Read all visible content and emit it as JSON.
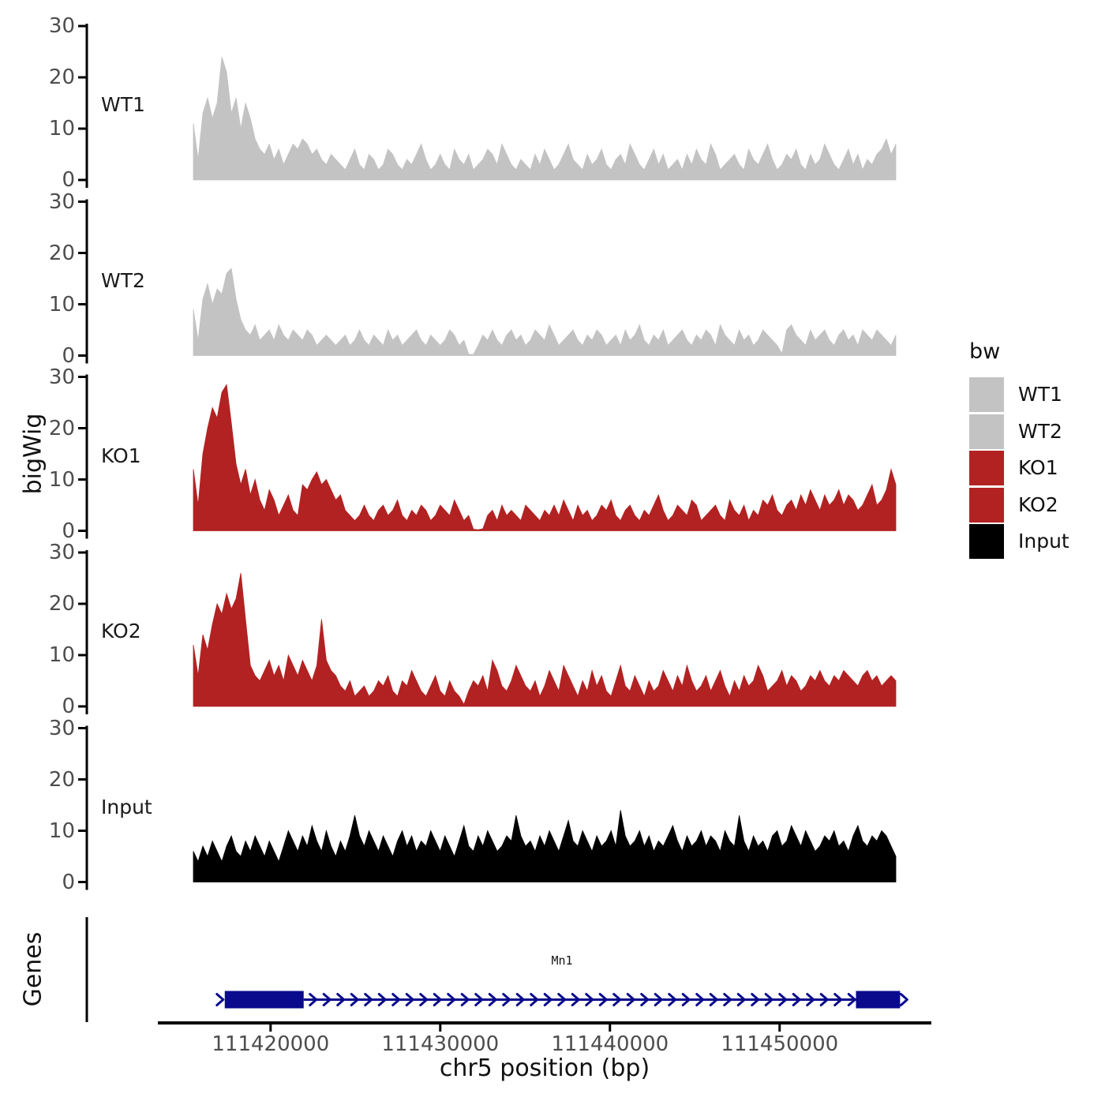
{
  "style": {
    "background": "#FFFFFF",
    "axis_color": "#000000",
    "tick_label_color": "#4D4D4D",
    "text_color": "#111111",
    "gray_fill": "#C3C3C3",
    "red_fill": "#B22222",
    "black_fill": "#000000",
    "gene_color": "#0A0A8C"
  },
  "chart_data": {
    "type": "area",
    "title": "",
    "x_axis": {
      "label": "chr5 position (bp)",
      "ticks": [
        111420000,
        111430000,
        111440000,
        111450000
      ],
      "tick_labels": [
        "111420000",
        "111430000",
        "111440000",
        "111450000"
      ],
      "range": [
        111415450,
        111456850
      ]
    },
    "y_axis": {
      "label": "bigWig",
      "ticks": [
        0,
        10,
        20,
        30
      ],
      "range": [
        0,
        30
      ]
    },
    "tracks": [
      {
        "name": "WT1",
        "color": "#C3C3C3",
        "values": [
          11,
          4,
          13,
          16,
          12,
          15,
          24,
          21,
          13,
          16,
          10,
          15,
          12,
          8,
          6,
          5,
          7,
          4,
          6,
          3,
          5,
          7,
          6,
          8,
          7,
          5,
          6,
          4,
          3,
          5,
          4,
          3,
          2,
          4,
          6,
          3,
          2,
          5,
          4,
          2,
          3,
          6,
          5,
          3,
          2,
          4,
          3,
          5,
          7,
          4,
          2,
          3,
          5,
          3,
          2,
          6,
          4,
          3,
          5,
          2,
          3,
          4,
          6,
          5,
          3,
          7,
          5,
          3,
          2,
          4,
          3,
          2,
          5,
          3,
          6,
          4,
          2,
          3,
          5,
          7,
          4,
          3,
          2,
          5,
          3,
          4,
          6,
          3,
          2,
          4,
          5,
          3,
          7,
          5,
          3,
          2,
          4,
          6,
          3,
          5,
          2,
          3,
          4,
          2,
          5,
          3,
          6,
          4,
          3,
          7,
          5,
          2,
          3,
          4,
          5,
          3,
          2,
          6,
          4,
          3,
          5,
          7,
          4,
          2,
          3,
          5,
          4,
          6,
          3,
          2,
          5,
          3,
          4,
          7,
          5,
          3,
          2,
          4,
          6,
          3,
          5,
          2,
          4,
          3,
          5,
          6,
          8,
          5,
          7
        ]
      },
      {
        "name": "WT2",
        "color": "#C3C3C3",
        "values": [
          9,
          3,
          11,
          14,
          10,
          13,
          12,
          16,
          17,
          11,
          7,
          5,
          4,
          6,
          3,
          4,
          5,
          3,
          6,
          4,
          3,
          5,
          4,
          3,
          5,
          4,
          2,
          3,
          4,
          3,
          2,
          3,
          4,
          2,
          3,
          5,
          3,
          2,
          4,
          3,
          2,
          5,
          3,
          4,
          2,
          3,
          4,
          5,
          3,
          2,
          4,
          3,
          2,
          3,
          5,
          4,
          2,
          3,
          0.3,
          0.2,
          2,
          4,
          3,
          5,
          3,
          2,
          4,
          5,
          3,
          4,
          2,
          3,
          5,
          4,
          3,
          6,
          4,
          2,
          3,
          4,
          5,
          3,
          2,
          4,
          3,
          5,
          4,
          2,
          3,
          4,
          2,
          5,
          3,
          4,
          6,
          3,
          2,
          4,
          3,
          5,
          2,
          3,
          4,
          5,
          3,
          2,
          4,
          3,
          5,
          4,
          2,
          6,
          4,
          3,
          2,
          5,
          3,
          4,
          2,
          3,
          5,
          4,
          3,
          2,
          0.4,
          5,
          6,
          4,
          3,
          2,
          5,
          3,
          4,
          5,
          3,
          2,
          4,
          5,
          3,
          4,
          2,
          5,
          4,
          3,
          5,
          4,
          3,
          2,
          4
        ]
      },
      {
        "name": "KO1",
        "color": "#B22222",
        "values": [
          12,
          5,
          15,
          20,
          24,
          22,
          27,
          28.5,
          21,
          13,
          9,
          12,
          7,
          10,
          6,
          4,
          8,
          6,
          3,
          5,
          7,
          4,
          3,
          9,
          8,
          10,
          11.5,
          9,
          10,
          8,
          6,
          7,
          4,
          3,
          2,
          3,
          5,
          3,
          2,
          4,
          5,
          3,
          4,
          6,
          3,
          2,
          4,
          3,
          5,
          4,
          2,
          3,
          5,
          4,
          3,
          6,
          4,
          2,
          3,
          0.3,
          0.2,
          0.4,
          3,
          4,
          2,
          5,
          3,
          4,
          3,
          2,
          5,
          4,
          3,
          2,
          4,
          3,
          5,
          3,
          6,
          4,
          2,
          5,
          3,
          4,
          2,
          3,
          5,
          4,
          6,
          3,
          2,
          4,
          5,
          3,
          2,
          4,
          3,
          5,
          7,
          4,
          2,
          3,
          5,
          4,
          3,
          6,
          5,
          2,
          3,
          4,
          5,
          3,
          2,
          6,
          4,
          3,
          5,
          2,
          4,
          3,
          6,
          5,
          7,
          4,
          3,
          5,
          6,
          4,
          7,
          5,
          8,
          6,
          4,
          7,
          5,
          6,
          8,
          5,
          7,
          6,
          4,
          5,
          7,
          9,
          5,
          6,
          8,
          12,
          9
        ]
      },
      {
        "name": "KO2",
        "color": "#B22222",
        "values": [
          12,
          6,
          14,
          11,
          16,
          20,
          18,
          22,
          19,
          21,
          26,
          17,
          8,
          6,
          5,
          7,
          9,
          6,
          8,
          5,
          10,
          8,
          6,
          9,
          7,
          5,
          8,
          17,
          9,
          7,
          6,
          4,
          3,
          5,
          2,
          3,
          4,
          2,
          3,
          5,
          4,
          6,
          3,
          2,
          5,
          4,
          7,
          5,
          3,
          2,
          4,
          6,
          3,
          2,
          5,
          3,
          2,
          0.4,
          3,
          5,
          4,
          6,
          3,
          9,
          7,
          4,
          3,
          5,
          8,
          6,
          4,
          3,
          5,
          2,
          4,
          7,
          5,
          3,
          8,
          6,
          4,
          2,
          5,
          3,
          7,
          4,
          6,
          3,
          2,
          5,
          8,
          4,
          3,
          6,
          4,
          2,
          5,
          3,
          4,
          7,
          5,
          3,
          6,
          4,
          8,
          5,
          3,
          4,
          6,
          3,
          5,
          7,
          4,
          2,
          5,
          3,
          6,
          4,
          5,
          8,
          6,
          3,
          4,
          5,
          7,
          4,
          6,
          5,
          3,
          4,
          6,
          5,
          7,
          5,
          4,
          6,
          5,
          7,
          6,
          5,
          4,
          6,
          7,
          5,
          6,
          4,
          5,
          6,
          5
        ]
      },
      {
        "name": "Input",
        "color": "#000000",
        "values": [
          6,
          4,
          7,
          5,
          8,
          6,
          4,
          7,
          9,
          6,
          5,
          8,
          6,
          9,
          7,
          5,
          8,
          6,
          4,
          7,
          10,
          8,
          6,
          9,
          7,
          11,
          8,
          6,
          10,
          7,
          5,
          8,
          6,
          9,
          13,
          9,
          7,
          10,
          8,
          6,
          9,
          7,
          5,
          8,
          10,
          7,
          9,
          6,
          8,
          7,
          10,
          8,
          6,
          9,
          7,
          5,
          8,
          11,
          7,
          6,
          9,
          7,
          10,
          8,
          6,
          7,
          9,
          8,
          13,
          9,
          7,
          8,
          6,
          9,
          7,
          10,
          8,
          6,
          9,
          12,
          8,
          7,
          10,
          8,
          6,
          9,
          7,
          8,
          10,
          7,
          14,
          9,
          7,
          8,
          10,
          7,
          9,
          6,
          8,
          7,
          9,
          11,
          8,
          6,
          9,
          7,
          8,
          10,
          7,
          9,
          8,
          6,
          10,
          8,
          7,
          13,
          8,
          6,
          9,
          7,
          8,
          6,
          9,
          10,
          7,
          8,
          11,
          9,
          7,
          10,
          8,
          6,
          7,
          9,
          8,
          10,
          7,
          8,
          6,
          9,
          11,
          8,
          7,
          9,
          8,
          10,
          9,
          7,
          5
        ]
      }
    ],
    "gene_track": {
      "label": "Genes",
      "gene": {
        "name": "Mn1",
        "color": "#0A0A8C",
        "strand": "+",
        "start": 111417300,
        "end": 111457100,
        "exons": [
          [
            111417300,
            111421950
          ],
          [
            111454500,
            111457100
          ]
        ]
      }
    }
  },
  "legend": {
    "title": "bw",
    "entries": [
      {
        "label": "WT1",
        "color": "#C3C3C3"
      },
      {
        "label": "WT2",
        "color": "#C3C3C3"
      },
      {
        "label": "KO1",
        "color": "#B22222"
      },
      {
        "label": "KO2",
        "color": "#B22222"
      },
      {
        "label": "Input",
        "color": "#000000"
      }
    ]
  }
}
